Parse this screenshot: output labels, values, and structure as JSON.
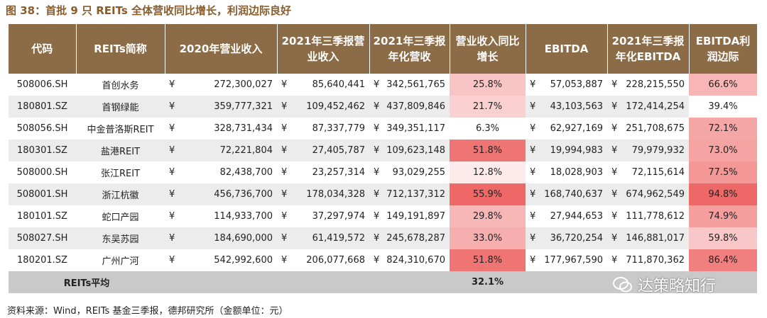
{
  "title": "图 38：首批 9 只 REITs 全体营收同比增长，利润边际良好",
  "table": {
    "currency": "¥",
    "header": [
      "代码",
      "REITs简称",
      "2020年营业收入",
      "2021年三季报营业收入",
      "2021年三季报年化营收",
      "营业收入同比增长",
      "EBITDA",
      "2021年三季报年化EBITDA",
      "EBITDA利润边际"
    ],
    "rows": [
      [
        "508006.SH",
        "首创水务",
        "272,300,027",
        "85,640,441",
        "342,561,765",
        "25.8%",
        "57,053,887",
        "228,215,550",
        "66.6%"
      ],
      [
        "180801.SZ",
        "首钢绿能",
        "359,777,321",
        "109,452,462",
        "437,809,846",
        "21.7%",
        "43,103,563",
        "172,414,254",
        "39.4%"
      ],
      [
        "508056.SH",
        "中金普洛斯REIT",
        "328,731,434",
        "87,337,779",
        "349,351,117",
        "6.3%",
        "62,927,169",
        "251,708,675",
        "72.1%"
      ],
      [
        "180301.SZ",
        "盐港REIT",
        "72,221,804",
        "27,405,787",
        "109,623,148",
        "51.8%",
        "19,994,983",
        "79,979,932",
        "73.0%"
      ],
      [
        "508000.SH",
        "张江REIT",
        "82,438,700",
        "23,257,314",
        "93,029,255",
        "12.8%",
        "18,028,903",
        "72,115,614",
        "77.5%"
      ],
      [
        "508001.SH",
        "浙江杭徽",
        "456,736,700",
        "178,034,328",
        "712,137,312",
        "55.9%",
        "168,740,637",
        "674,962,549",
        "94.8%"
      ],
      [
        "180101.SZ",
        "蛇口产园",
        "114,933,700",
        "37,297,974",
        "149,191,897",
        "29.8%",
        "27,944,653",
        "111,778,612",
        "74.9%"
      ],
      [
        "508027.SH",
        "东吴苏园",
        "184,690,000",
        "61,419,572",
        "245,678,287",
        "33.0%",
        "36,720,254",
        "146,881,017",
        "59.8%"
      ],
      [
        "180201.SZ",
        "广州广河",
        "542,992,600",
        "206,077,668",
        "824,310,670",
        "51.8%",
        "177,967,590",
        "711,870,362",
        "86.4%"
      ]
    ],
    "average": {
      "label": "REITs平均",
      "growth": "32.1%"
    }
  },
  "watermark": "达策略知行",
  "source": "资料来源：Wind，REITs 基金三季报，德邦研究所（金额单位：元）"
}
